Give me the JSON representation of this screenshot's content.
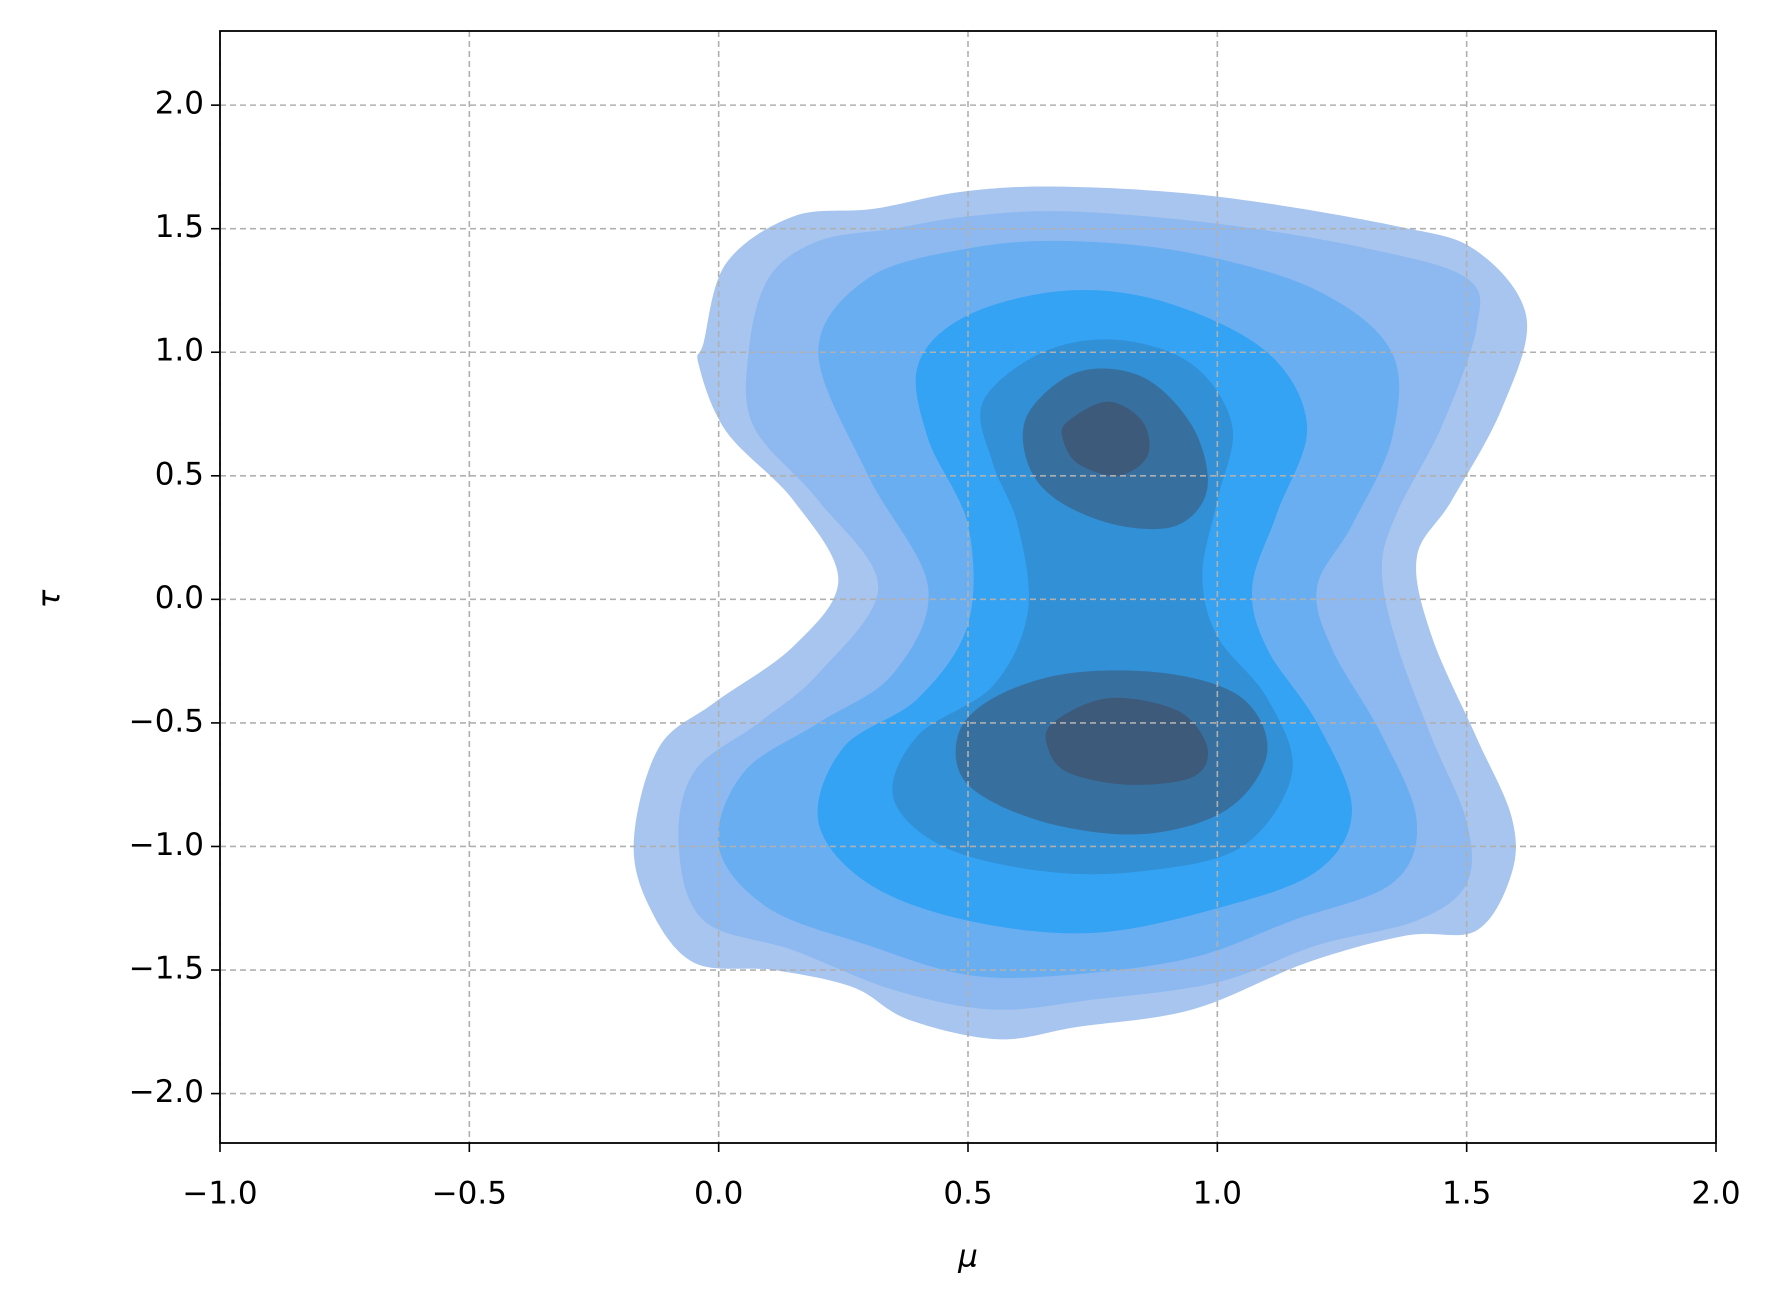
{
  "chart_data": {
    "type": "contour",
    "x_label": "μ",
    "y_label": "τ",
    "xlim": [
      -1,
      2
    ],
    "ylim": [
      -2.2,
      2.3
    ],
    "xticks": [
      {
        "value": -1,
        "label": "−1.0"
      },
      {
        "value": -0.5,
        "label": "−0.5"
      },
      {
        "value": 0,
        "label": "0.0"
      },
      0.5,
      {
        "value": 1,
        "label": "1.0"
      },
      1.5,
      {
        "value": 2,
        "label": "2.0"
      }
    ],
    "yticks": [
      {
        "value": -2,
        "label": "−2.0"
      },
      {
        "value": -1.5,
        "label": "−1.5"
      },
      {
        "value": -1,
        "label": "−1.0"
      },
      {
        "value": -0.5,
        "label": "−0.5"
      },
      {
        "value": 0,
        "label": "0.0"
      },
      0.5,
      {
        "value": 1,
        "label": "1.0"
      },
      1.5,
      {
        "value": 2,
        "label": "2.0"
      }
    ],
    "grid": true,
    "contours": [
      {
        "color": "#a7c5ee",
        "x": [
          -0.03,
          0.015,
          0.15,
          0.31,
          0.49,
          0.69,
          1.0,
          1.36,
          1.52,
          1.62,
          1.57,
          1.47,
          1.4,
          1.43,
          1.52,
          1.59,
          1.59,
          1.52,
          1.38,
          1.18,
          0.95,
          0.72,
          0.56,
          0.38,
          0.27,
          0.11,
          -0.05,
          -0.14,
          -0.17,
          -0.12,
          -0.01,
          0.15,
          0.24,
          0.15,
          0.015,
          -0.04
        ],
        "y": [
          1.04,
          1.36,
          1.55,
          1.58,
          1.65,
          1.67,
          1.63,
          1.51,
          1.41,
          1.14,
          0.77,
          0.4,
          0.17,
          -0.15,
          -0.56,
          -0.88,
          -1.11,
          -1.34,
          -1.36,
          -1.47,
          -1.66,
          -1.73,
          -1.78,
          -1.7,
          -1.57,
          -1.5,
          -1.47,
          -1.24,
          -0.97,
          -0.6,
          -0.42,
          -0.19,
          0.08,
          0.4,
          0.68,
          0.95
        ]
      },
      {
        "color": "#8db9f0",
        "x": [
          0.06,
          0.1,
          0.2,
          0.35,
          0.5,
          0.7,
          1.0,
          1.3,
          1.5,
          1.52,
          1.45,
          1.36,
          1.33,
          1.36,
          1.43,
          1.5,
          1.5,
          1.4,
          1.2,
          1.0,
          0.75,
          0.55,
          0.35,
          0.15,
          -0.03,
          -0.08,
          -0.05,
          0.08,
          0.2,
          0.32,
          0.2,
          0.07
        ],
        "y": [
          1.0,
          1.3,
          1.45,
          1.5,
          1.55,
          1.57,
          1.52,
          1.42,
          1.3,
          1.1,
          0.7,
          0.35,
          0.12,
          -0.18,
          -0.56,
          -0.9,
          -1.15,
          -1.3,
          -1.4,
          -1.55,
          -1.62,
          -1.66,
          -1.58,
          -1.42,
          -1.3,
          -1.0,
          -0.7,
          -0.5,
          -0.3,
          0.05,
          0.4,
          0.7
        ]
      },
      {
        "color": "#6aaef2",
        "x": [
          0.2,
          0.3,
          0.5,
          0.7,
          0.95,
          1.2,
          1.35,
          1.35,
          1.27,
          1.2,
          1.23,
          1.33,
          1.4,
          1.35,
          1.15,
          0.95,
          0.7,
          0.5,
          0.3,
          0.1,
          0.0,
          0.05,
          0.2,
          0.35,
          0.42,
          0.3
        ],
        "y": [
          1.0,
          1.3,
          1.42,
          1.45,
          1.4,
          1.25,
          1.0,
          0.65,
          0.3,
          0.05,
          -0.2,
          -0.55,
          -0.9,
          -1.15,
          -1.3,
          -1.45,
          -1.52,
          -1.52,
          -1.4,
          -1.25,
          -1.0,
          -0.7,
          -0.5,
          -0.3,
          0.05,
          0.5
        ]
      },
      {
        "color": "#34a3f4",
        "x": [
          0.4,
          0.5,
          0.7,
          0.9,
          1.1,
          1.18,
          1.12,
          1.07,
          1.1,
          1.2,
          1.27,
          1.2,
          1.0,
          0.75,
          0.5,
          0.3,
          0.2,
          0.25,
          0.4,
          0.5,
          0.5,
          0.42
        ],
        "y": [
          0.95,
          1.15,
          1.25,
          1.2,
          1.0,
          0.7,
          0.35,
          0.05,
          -0.2,
          -0.5,
          -0.85,
          -1.1,
          -1.25,
          -1.35,
          -1.3,
          -1.15,
          -0.9,
          -0.6,
          -0.4,
          -0.1,
          0.3,
          0.65
        ]
      },
      {
        "color": "#3190d6",
        "x": [
          0.53,
          0.65,
          0.8,
          0.95,
          1.03,
          1.0,
          0.97,
          1.0,
          1.1,
          1.15,
          1.05,
          0.85,
          0.65,
          0.45,
          0.35,
          0.4,
          0.55,
          0.62,
          0.6,
          0.55
        ],
        "y": [
          0.8,
          1.0,
          1.05,
          0.95,
          0.7,
          0.4,
          0.1,
          -0.15,
          -0.4,
          -0.7,
          -1.0,
          -1.1,
          -1.1,
          -1.0,
          -0.8,
          -0.55,
          -0.35,
          -0.05,
          0.3,
          0.55
        ]
      },
      {
        "color": "#37709f",
        "x": [
          0.62,
          0.72,
          0.85,
          0.95,
          0.98,
          0.92,
          0.8,
          0.68,
          0.62
        ],
        "y": [
          0.75,
          0.92,
          0.9,
          0.7,
          0.45,
          0.3,
          0.3,
          0.4,
          0.55
        ]
      },
      {
        "color": "#37709f",
        "x": [
          0.55,
          0.7,
          0.9,
          1.05,
          1.1,
          1.02,
          0.85,
          0.65,
          0.5,
          0.48
        ],
        "y": [
          -0.4,
          -0.3,
          -0.3,
          -0.4,
          -0.62,
          -0.85,
          -0.95,
          -0.9,
          -0.75,
          -0.55
        ]
      },
      {
        "color": "#3e5a7b",
        "x": [
          0.7,
          0.78,
          0.85,
          0.86,
          0.8,
          0.72,
          0.69
        ],
        "y": [
          0.72,
          0.8,
          0.72,
          0.58,
          0.5,
          0.55,
          0.65
        ]
      },
      {
        "color": "#3e5a7b",
        "x": [
          0.67,
          0.78,
          0.92,
          0.98,
          0.95,
          0.82,
          0.7,
          0.66
        ],
        "y": [
          -0.5,
          -0.4,
          -0.45,
          -0.6,
          -0.72,
          -0.75,
          -0.7,
          -0.6
        ]
      }
    ]
  }
}
